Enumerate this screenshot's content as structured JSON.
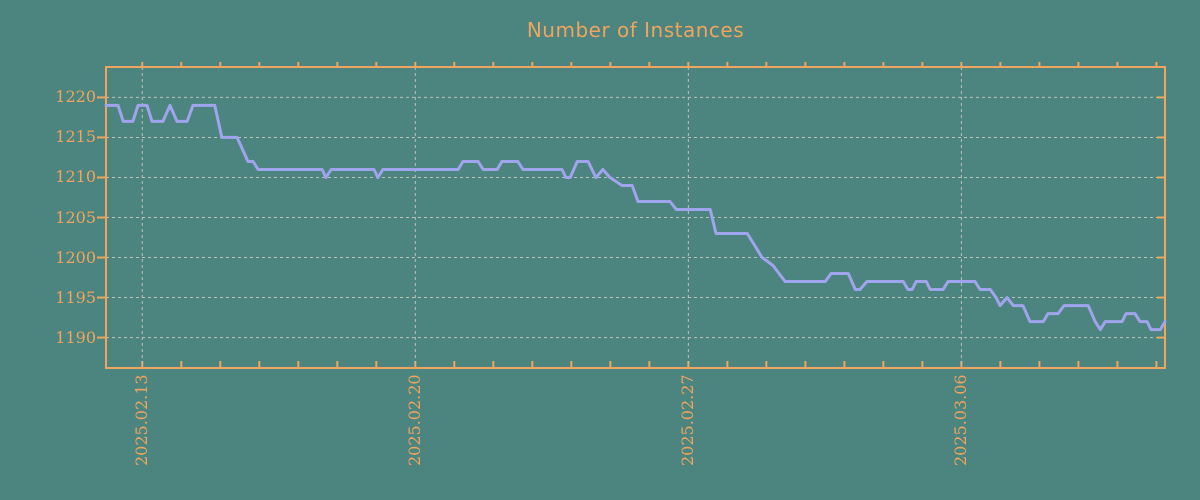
{
  "title": "Number of Instances",
  "colors": {
    "background": "#4c847f",
    "accent_orange": "#efa55f",
    "grid": "#bdc2ba",
    "line": "#a0a4ec"
  },
  "chart_data": {
    "type": "line",
    "title": "Number of Instances",
    "xlabel": "",
    "ylabel": "",
    "x_unit": "days since 2025.02.12",
    "xlim": [
      0,
      27.15
    ],
    "ylim": [
      1186.2,
      1223.8
    ],
    "grid": "dashed, weekly vertical + every 5 units horizontal",
    "legend": "none",
    "y_ticks": [
      1190,
      1195,
      1200,
      1205,
      1210,
      1215,
      1220
    ],
    "x_major_ticks": [
      {
        "t": 0.93,
        "label": "2025.02.13"
      },
      {
        "t": 7.93,
        "label": "2025.02.20"
      },
      {
        "t": 14.93,
        "label": "2025.02.27"
      },
      {
        "t": 21.93,
        "label": "2025.03.06"
      }
    ],
    "x_minor_tick_interval_days": 1,
    "x_minor_tick_count": 27,
    "series": [
      {
        "name": "instances",
        "color": "#a0a4ec",
        "points": [
          [
            0.0,
            1219
          ],
          [
            0.31,
            1219
          ],
          [
            0.44,
            1217
          ],
          [
            0.69,
            1217
          ],
          [
            0.82,
            1219
          ],
          [
            1.05,
            1219
          ],
          [
            1.18,
            1217
          ],
          [
            1.46,
            1217
          ],
          [
            1.64,
            1219
          ],
          [
            1.82,
            1217
          ],
          [
            2.08,
            1217
          ],
          [
            2.23,
            1219
          ],
          [
            2.79,
            1219
          ],
          [
            2.97,
            1215
          ],
          [
            3.36,
            1215
          ],
          [
            3.64,
            1212
          ],
          [
            3.77,
            1212
          ],
          [
            3.9,
            1211
          ],
          [
            5.54,
            1211
          ],
          [
            5.64,
            1210
          ],
          [
            5.77,
            1211
          ],
          [
            6.87,
            1211
          ],
          [
            6.97,
            1210
          ],
          [
            7.1,
            1211
          ],
          [
            9.03,
            1211
          ],
          [
            9.15,
            1212
          ],
          [
            9.54,
            1212
          ],
          [
            9.67,
            1211
          ],
          [
            10.03,
            1211
          ],
          [
            10.15,
            1212
          ],
          [
            10.56,
            1212
          ],
          [
            10.69,
            1211
          ],
          [
            11.69,
            1211
          ],
          [
            11.79,
            1210
          ],
          [
            11.9,
            1210
          ],
          [
            12.08,
            1212
          ],
          [
            12.36,
            1212
          ],
          [
            12.56,
            1210
          ],
          [
            12.74,
            1211
          ],
          [
            12.92,
            1210
          ],
          [
            13.23,
            1209
          ],
          [
            13.49,
            1209
          ],
          [
            13.64,
            1207
          ],
          [
            14.46,
            1207
          ],
          [
            14.62,
            1206
          ],
          [
            15.49,
            1206
          ],
          [
            15.64,
            1203
          ],
          [
            16.44,
            1203
          ],
          [
            16.82,
            1200
          ],
          [
            17.1,
            1199
          ],
          [
            17.41,
            1197
          ],
          [
            18.44,
            1197
          ],
          [
            18.59,
            1198
          ],
          [
            19.03,
            1198
          ],
          [
            19.21,
            1196
          ],
          [
            19.33,
            1196
          ],
          [
            19.51,
            1197
          ],
          [
            20.44,
            1197
          ],
          [
            20.56,
            1196
          ],
          [
            20.67,
            1196
          ],
          [
            20.77,
            1197
          ],
          [
            21.03,
            1197
          ],
          [
            21.13,
            1196
          ],
          [
            21.46,
            1196
          ],
          [
            21.59,
            1197
          ],
          [
            22.28,
            1197
          ],
          [
            22.41,
            1196
          ],
          [
            22.67,
            1196
          ],
          [
            22.82,
            1195
          ],
          [
            22.92,
            1194
          ],
          [
            23.1,
            1195
          ],
          [
            23.26,
            1194
          ],
          [
            23.51,
            1194
          ],
          [
            23.69,
            1192
          ],
          [
            24.03,
            1192
          ],
          [
            24.15,
            1193
          ],
          [
            24.41,
            1193
          ],
          [
            24.56,
            1194
          ],
          [
            25.18,
            1194
          ],
          [
            25.36,
            1192
          ],
          [
            25.49,
            1191
          ],
          [
            25.62,
            1192
          ],
          [
            26.05,
            1192
          ],
          [
            26.15,
            1193
          ],
          [
            26.38,
            1193
          ],
          [
            26.51,
            1192
          ],
          [
            26.69,
            1192
          ],
          [
            26.79,
            1191
          ],
          [
            27.03,
            1191
          ],
          [
            27.15,
            1192
          ]
        ]
      }
    ]
  }
}
